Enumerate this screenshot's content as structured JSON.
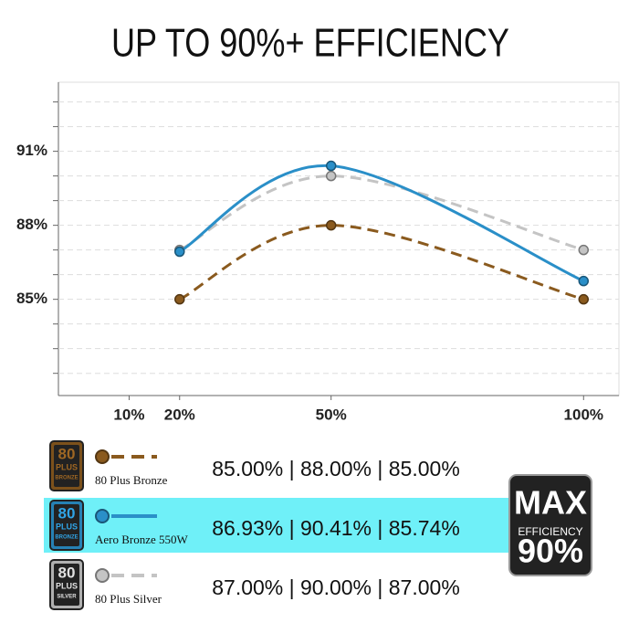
{
  "chart_data": {
    "type": "line",
    "title": "UP TO 90%+ EFFICIENCY",
    "x": [
      20,
      50,
      100
    ],
    "xlim": [
      -4,
      107
    ],
    "xticks": [
      {
        "value": 10,
        "label": "10%"
      },
      {
        "value": 20,
        "label": "20%"
      },
      {
        "value": 50,
        "label": "50%"
      },
      {
        "value": 100,
        "label": "100%"
      }
    ],
    "ylim": [
      81.1,
      93.8
    ],
    "yticks": [
      {
        "value": 85,
        "label": "85%"
      },
      {
        "value": 88,
        "label": "88%"
      },
      {
        "value": 91,
        "label": "91%"
      }
    ],
    "grid_yticks": [
      82,
      83,
      84,
      85,
      86,
      87,
      88,
      89,
      90,
      91,
      92,
      93
    ],
    "grid": true,
    "series": [
      {
        "name": "80 Plus Bronze",
        "color": "#8a5a1e",
        "dashed": true,
        "values": [
          85.0,
          88.0,
          85.0
        ],
        "summary": "85.00% | 88.00% | 85.00%",
        "badge": [
          "80",
          "PLUS",
          "BRONZE"
        ],
        "highlight": false
      },
      {
        "name": "Aero Bronze 550W",
        "color": "#2a8fc8",
        "dashed": false,
        "values": [
          86.93,
          90.41,
          85.74
        ],
        "summary": "86.93% | 90.41% | 85.74%",
        "badge": [
          "80",
          "PLUS",
          "BRONZE"
        ],
        "highlight": true
      },
      {
        "name": "80 Plus Silver",
        "color": "#c4c4c4",
        "dashed": true,
        "values": [
          87.0,
          90.0,
          87.0
        ],
        "summary": "87.00% | 90.00% | 87.00%",
        "badge": [
          "80",
          "PLUS",
          "SILVER"
        ],
        "highlight": false
      }
    ],
    "max_badge": [
      "MAX",
      "EFFICIENCY",
      "90%"
    ]
  }
}
